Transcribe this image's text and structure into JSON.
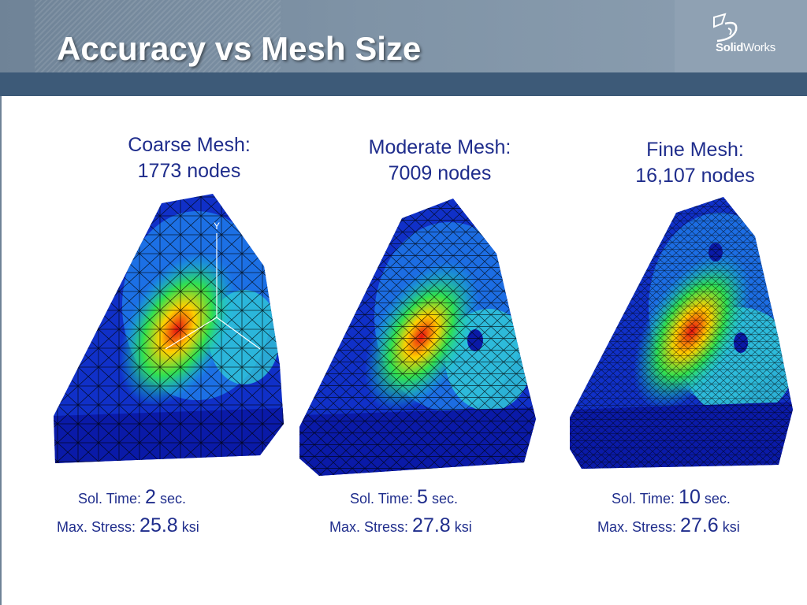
{
  "slide": {
    "title": "Accuracy vs Mesh Size",
    "logo_text_bold": "Solid",
    "logo_text_light": "Works"
  },
  "panels": [
    {
      "heading_line1": "Coarse Mesh:",
      "heading_line2": "1773 nodes",
      "sol_time_label": "Sol. Time:",
      "sol_time_value": "2",
      "sol_time_unit": "sec.",
      "max_stress_label": "Max. Stress:",
      "max_stress_value": "25.8",
      "max_stress_unit": "ksi",
      "axis_label": "Y"
    },
    {
      "heading_line1": "Moderate Mesh:",
      "heading_line2": "7009 nodes",
      "sol_time_label": "Sol. Time:",
      "sol_time_value": "5",
      "sol_time_unit": "sec.",
      "max_stress_label": "Max. Stress:",
      "max_stress_value": "27.8",
      "max_stress_unit": "ksi"
    },
    {
      "heading_line1": "Fine Mesh:",
      "heading_line2": "16,107 nodes",
      "sol_time_label": "Sol. Time:",
      "sol_time_value": "10",
      "sol_time_unit": "sec.",
      "max_stress_label": "Max. Stress:",
      "max_stress_value": "27.6",
      "max_stress_unit": "ksi"
    }
  ],
  "colors": {
    "text_blue": "#1f2d8c",
    "header_band": "#3d5a78",
    "stress_low": "#0a1aa8",
    "stress_high": "#e81010"
  }
}
